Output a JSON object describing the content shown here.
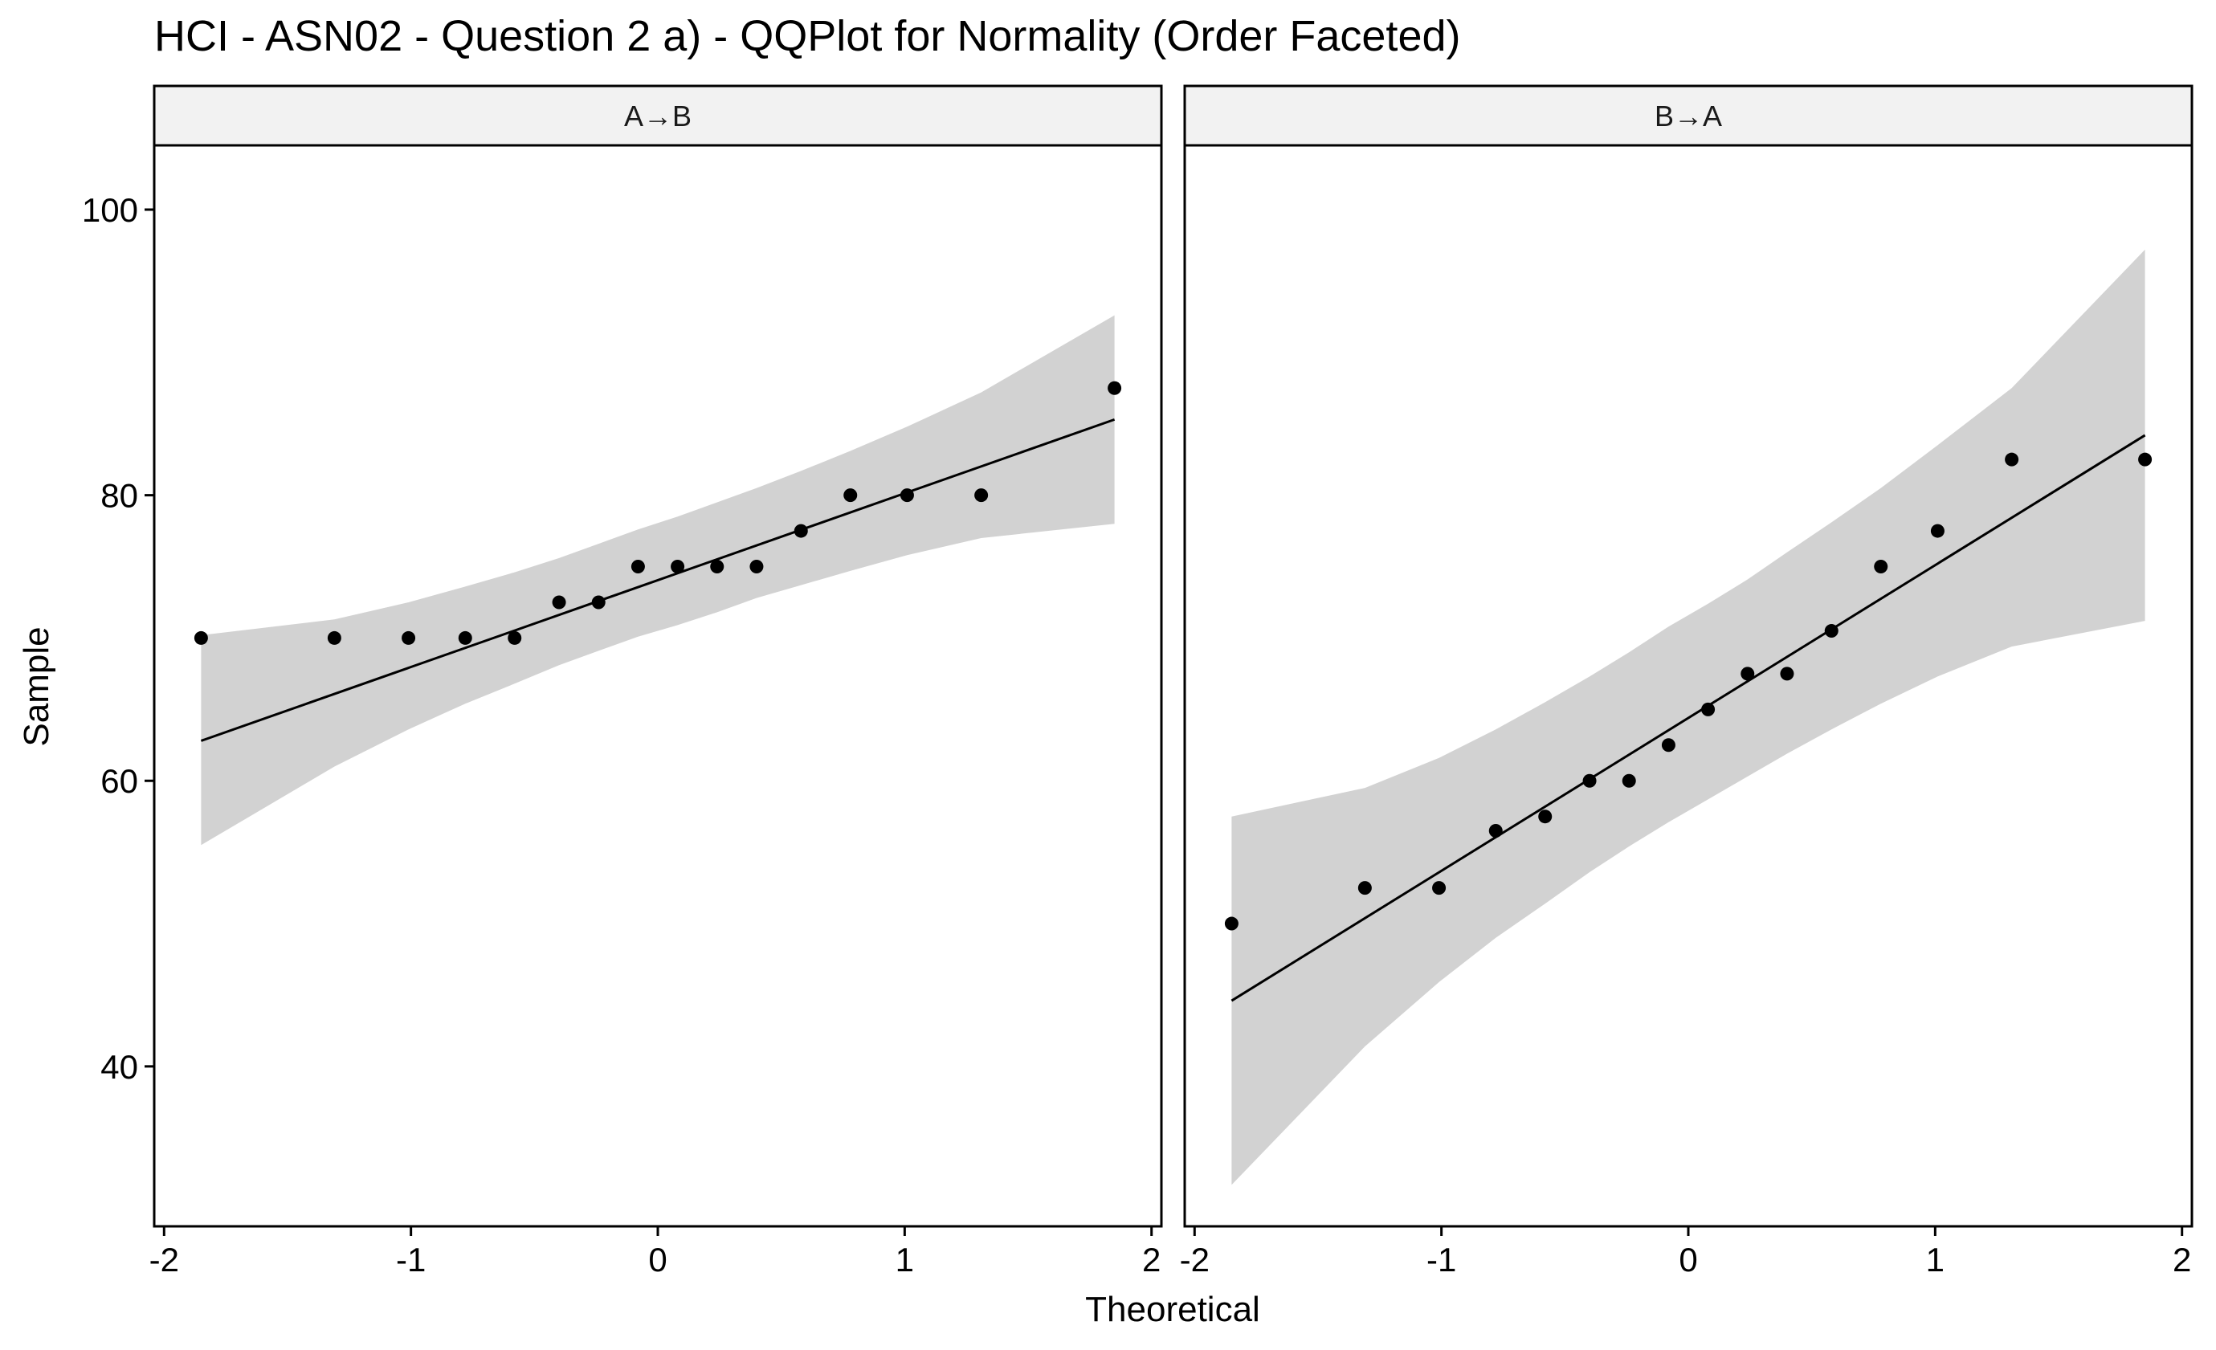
{
  "chart_data": {
    "type": "scatter",
    "title": "HCI - ASN02 - Question 2 a) - QQPlot for Normality (Order Faceted)",
    "xlabel": "Theoretical",
    "ylabel": "Sample",
    "xlim": [
      -2.04,
      2.04
    ],
    "ylim": [
      28.8,
      104.5
    ],
    "x_ticks": [
      -2,
      -1,
      0,
      1,
      2
    ],
    "x_tick_labels": [
      "-2",
      "-1",
      "0",
      "1",
      "2"
    ],
    "y_ticks": [
      40,
      60,
      80,
      100
    ],
    "y_tick_labels": [
      "40",
      "60",
      "80",
      "100"
    ],
    "grid": false,
    "colors": {
      "points": "#000000",
      "line": "#000000",
      "band": "#d2d2d2",
      "strip_fill": "#f2f2f2",
      "border": "#000000"
    },
    "facets": [
      {
        "label": "A→B",
        "points": [
          {
            "x": -1.85,
            "y": 70.0
          },
          {
            "x": -1.31,
            "y": 70.0
          },
          {
            "x": -1.01,
            "y": 70.0
          },
          {
            "x": -0.78,
            "y": 70.0
          },
          {
            "x": -0.58,
            "y": 70.0
          },
          {
            "x": -0.4,
            "y": 72.5
          },
          {
            "x": -0.24,
            "y": 72.5
          },
          {
            "x": -0.08,
            "y": 75.0
          },
          {
            "x": 0.08,
            "y": 75.0
          },
          {
            "x": 0.24,
            "y": 75.0
          },
          {
            "x": 0.4,
            "y": 75.0
          },
          {
            "x": 0.58,
            "y": 77.5
          },
          {
            "x": 0.78,
            "y": 80.0
          },
          {
            "x": 1.01,
            "y": 80.0
          },
          {
            "x": 1.31,
            "y": 80.0
          },
          {
            "x": 1.85,
            "y": 87.5
          }
        ],
        "reference_line": {
          "x": [
            -1.85,
            1.85
          ],
          "y": [
            62.8,
            85.3
          ]
        },
        "confidence_band": [
          {
            "x": -1.85,
            "lower": 55.5,
            "upper": 70.2
          },
          {
            "x": -1.31,
            "lower": 61.0,
            "upper": 71.3
          },
          {
            "x": -1.01,
            "lower": 63.6,
            "upper": 72.5
          },
          {
            "x": -0.78,
            "lower": 65.4,
            "upper": 73.6
          },
          {
            "x": -0.58,
            "lower": 66.8,
            "upper": 74.6
          },
          {
            "x": -0.4,
            "lower": 68.1,
            "upper": 75.6
          },
          {
            "x": -0.24,
            "lower": 69.1,
            "upper": 76.6
          },
          {
            "x": -0.08,
            "lower": 70.1,
            "upper": 77.6
          },
          {
            "x": 0.08,
            "lower": 70.9,
            "upper": 78.5
          },
          {
            "x": 0.24,
            "lower": 71.8,
            "upper": 79.5
          },
          {
            "x": 0.4,
            "lower": 72.8,
            "upper": 80.5
          },
          {
            "x": 0.58,
            "lower": 73.7,
            "upper": 81.7
          },
          {
            "x": 0.78,
            "lower": 74.7,
            "upper": 83.1
          },
          {
            "x": 1.01,
            "lower": 75.8,
            "upper": 84.8
          },
          {
            "x": 1.31,
            "lower": 77.0,
            "upper": 87.2
          },
          {
            "x": 1.85,
            "lower": 78.0,
            "upper": 92.6
          }
        ]
      },
      {
        "label": "B→A",
        "points": [
          {
            "x": -1.85,
            "y": 50.0
          },
          {
            "x": -1.31,
            "y": 52.5
          },
          {
            "x": -1.01,
            "y": 52.5
          },
          {
            "x": -0.78,
            "y": 56.5
          },
          {
            "x": -0.58,
            "y": 57.5
          },
          {
            "x": -0.4,
            "y": 60.0
          },
          {
            "x": -0.24,
            "y": 60.0
          },
          {
            "x": -0.08,
            "y": 62.5
          },
          {
            "x": 0.08,
            "y": 65.0
          },
          {
            "x": 0.24,
            "y": 67.5
          },
          {
            "x": 0.4,
            "y": 67.5
          },
          {
            "x": 0.58,
            "y": 70.5
          },
          {
            "x": 0.78,
            "y": 75.0
          },
          {
            "x": 1.01,
            "y": 77.5
          },
          {
            "x": 1.31,
            "y": 82.5
          },
          {
            "x": 1.85,
            "y": 82.5
          }
        ],
        "reference_line": {
          "x": [
            -1.85,
            1.85
          ],
          "y": [
            44.6,
            84.2
          ]
        },
        "confidence_band": [
          {
            "x": -1.85,
            "lower": 31.7,
            "upper": 57.5
          },
          {
            "x": -1.31,
            "lower": 41.4,
            "upper": 59.5
          },
          {
            "x": -1.01,
            "lower": 45.9,
            "upper": 61.6
          },
          {
            "x": -0.78,
            "lower": 49.0,
            "upper": 63.6
          },
          {
            "x": -0.58,
            "lower": 51.4,
            "upper": 65.5
          },
          {
            "x": -0.4,
            "lower": 53.6,
            "upper": 67.3
          },
          {
            "x": -0.24,
            "lower": 55.4,
            "upper": 69.0
          },
          {
            "x": -0.08,
            "lower": 57.1,
            "upper": 70.8
          },
          {
            "x": 0.08,
            "lower": 58.7,
            "upper": 72.4
          },
          {
            "x": 0.24,
            "lower": 60.3,
            "upper": 74.1
          },
          {
            "x": 0.4,
            "lower": 61.9,
            "upper": 76.0
          },
          {
            "x": 0.58,
            "lower": 63.6,
            "upper": 78.1
          },
          {
            "x": 0.78,
            "lower": 65.4,
            "upper": 80.5
          },
          {
            "x": 1.01,
            "lower": 67.3,
            "upper": 83.5
          },
          {
            "x": 1.31,
            "lower": 69.4,
            "upper": 87.5
          },
          {
            "x": 1.85,
            "lower": 71.2,
            "upper": 97.2
          }
        ]
      }
    ]
  }
}
